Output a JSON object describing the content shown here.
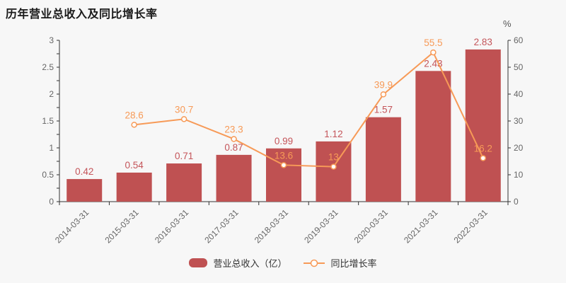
{
  "title": "历年营业总收入及同比增长率",
  "colors": {
    "background": "#f7f7f7",
    "bar": "#bf5152",
    "bar_label": "#c4555a",
    "line": "#f79a57",
    "line_label": "#f79a57",
    "marker_fill": "#ffffff",
    "axis": "#333333",
    "tick_label": "#666666",
    "title": "#1a1a1a"
  },
  "legend": {
    "items": [
      {
        "label": "营业总收入（亿）",
        "type": "bar"
      },
      {
        "label": "同比增长率",
        "type": "line"
      }
    ]
  },
  "chart_data": {
    "type": "bar+line",
    "title": "历年营业总收入及同比增长率",
    "categories": [
      "2014-03-31",
      "2015-03-31",
      "2016-03-31",
      "2017-03-31",
      "2018-03-31",
      "2019-03-31",
      "2020-03-31",
      "2021-03-31",
      "2022-03-31"
    ],
    "series": [
      {
        "name": "营业总收入（亿）",
        "type": "bar",
        "axis": "left",
        "values": [
          0.42,
          0.54,
          0.71,
          0.87,
          0.99,
          1.12,
          1.57,
          2.43,
          2.83
        ]
      },
      {
        "name": "同比增长率",
        "type": "line",
        "axis": "right",
        "values": [
          null,
          28.6,
          30.7,
          23.3,
          13.6,
          13,
          39.9,
          55.5,
          16.2
        ]
      }
    ],
    "y_left": {
      "min": 0,
      "max": 3,
      "label_step": 0.5,
      "minor_tick_step": 0.25,
      "labels": [
        "0",
        "0.5",
        "1",
        "1.5",
        "2",
        "2.5",
        "3"
      ]
    },
    "y_right": {
      "min": 0,
      "max": 60,
      "label_step": 10,
      "unit": "%",
      "labels": [
        "0",
        "10",
        "20",
        "30",
        "40",
        "50",
        "60"
      ]
    },
    "x_label_rotation": -45,
    "grid": false,
    "legend_position": "bottom"
  }
}
